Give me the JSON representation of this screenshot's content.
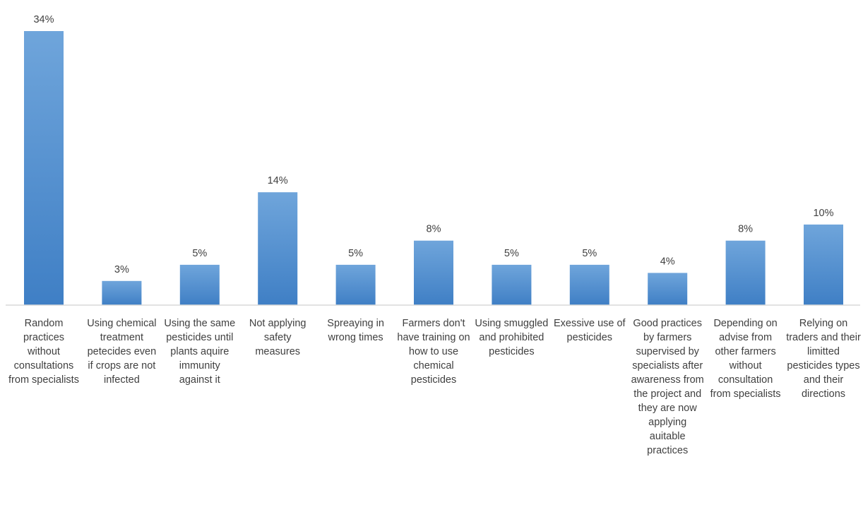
{
  "chart_data": {
    "type": "bar",
    "categories": [
      "Random practices without consultations from specialists",
      "Using chemical treatment petecides even if crops are not infected",
      "Using the same pesticides until plants aquire immunity against it",
      "Not applying safety measures",
      "Spreaying in wrong times",
      "Farmers don't have training on how to use chemical pesticides",
      "Using smuggled and prohibited pesticides",
      "Exessive use of pesticides",
      "Good practices by farmers supervised by specialists after awareness from the project and they are now applying auitable practices",
      "Depending on advise from other farmers without consultation from specialists",
      "Relying on traders and their limitted pesticides types and their directions"
    ],
    "values": [
      34,
      3,
      5,
      14,
      5,
      8,
      5,
      5,
      4,
      8,
      10
    ],
    "data_labels": [
      "34%",
      "3%",
      "5%",
      "14%",
      "5%",
      "8%",
      "5%",
      "5%",
      "4%",
      "8%",
      "10%"
    ],
    "ylim": [
      0,
      34
    ],
    "grid": false,
    "legend": "none",
    "colors": {
      "bar_top": "#6FA5DB",
      "bar_bottom": "#3F7FC5",
      "axis": "#D9D9D9",
      "label_text": "#404040"
    }
  }
}
